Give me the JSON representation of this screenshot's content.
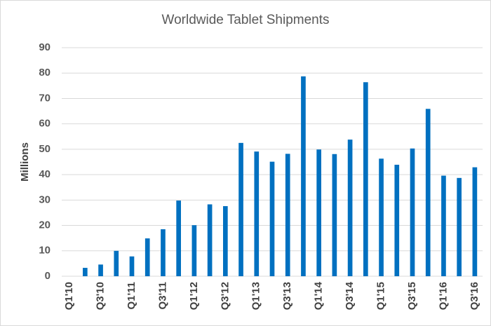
{
  "chart_data": {
    "type": "bar",
    "title": "Worldwide Tablet Shipments",
    "xlabel": "",
    "ylabel": "Millions",
    "ylim": [
      0,
      90
    ],
    "yticks": [
      0,
      10,
      20,
      30,
      40,
      50,
      60,
      70,
      80,
      90
    ],
    "grid": true,
    "legend": "none",
    "bar_color": "#0070C0",
    "categories": [
      "Q1'10",
      "Q2'10",
      "Q3'10",
      "Q4'10",
      "Q1'11",
      "Q2'11",
      "Q3'11",
      "Q4'11",
      "Q1'12",
      "Q2'12",
      "Q3'12",
      "Q4'12",
      "Q1'13",
      "Q2'13",
      "Q3'13",
      "Q4'13",
      "Q1'14",
      "Q2'14",
      "Q3'14",
      "Q4'14",
      "Q1'15",
      "Q2'15",
      "Q3'15",
      "Q4'15",
      "Q1'16",
      "Q2'16",
      "Q3'16"
    ],
    "tick_labels": [
      "Q1'10",
      "Q3'10",
      "Q1'11",
      "Q3'11",
      "Q1'12",
      "Q3'12",
      "Q1'13",
      "Q3'13",
      "Q1'14",
      "Q3'14",
      "Q1'15",
      "Q3'15",
      "Q1'16",
      "Q3'16"
    ],
    "values": [
      0,
      3.3,
      4.6,
      10.0,
      7.8,
      14.9,
      18.5,
      29.8,
      20.1,
      28.3,
      27.6,
      52.5,
      49.1,
      45.1,
      48.2,
      78.7,
      49.9,
      48.1,
      53.8,
      76.4,
      46.3,
      43.9,
      50.3,
      65.9,
      39.6,
      38.7,
      42.9
    ]
  }
}
